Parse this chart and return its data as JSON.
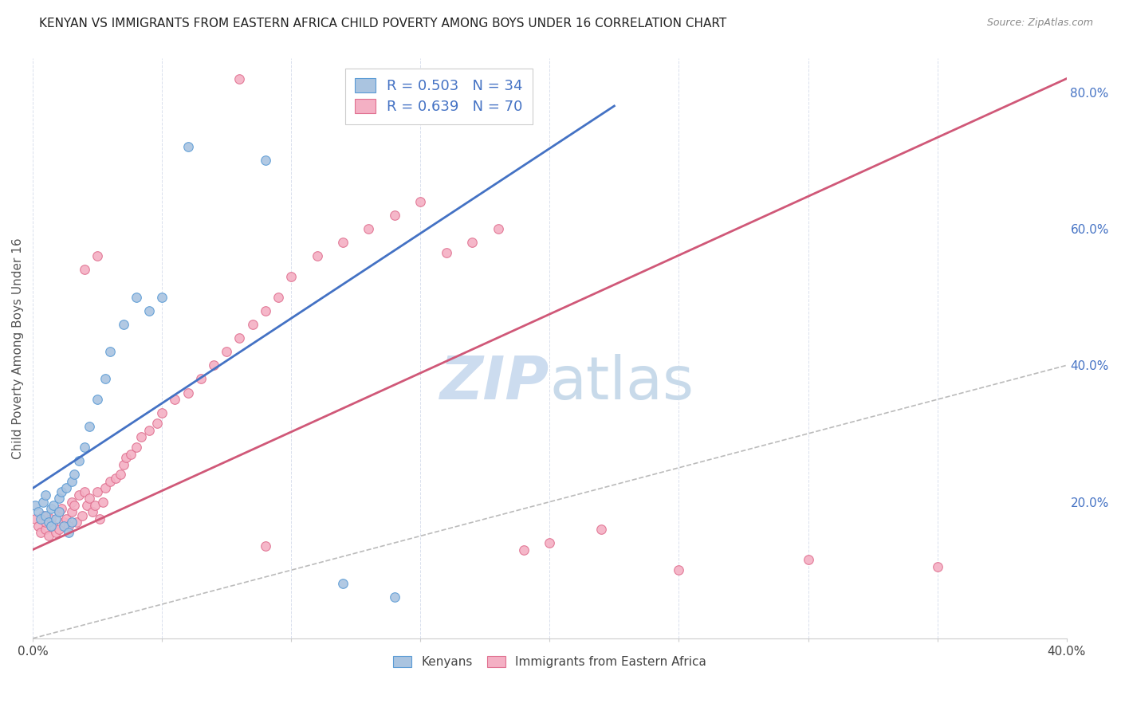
{
  "title": "KENYAN VS IMMIGRANTS FROM EASTERN AFRICA CHILD POVERTY AMONG BOYS UNDER 16 CORRELATION CHART",
  "source": "Source: ZipAtlas.com",
  "ylabel": "Child Poverty Among Boys Under 16",
  "x_min": 0.0,
  "x_max": 0.4,
  "y_min": 0.0,
  "y_max": 0.85,
  "kenyan_color": "#aac4e0",
  "kenyan_edge_color": "#5b9bd5",
  "immigrant_color": "#f4b0c4",
  "immigrant_edge_color": "#e07090",
  "kenyan_R": 0.503,
  "kenyan_N": 34,
  "immigrant_R": 0.639,
  "immigrant_N": 70,
  "kenyan_line_color": "#4472c4",
  "immigrant_line_color": "#d05878",
  "diagonal_color": "#bbbbbb",
  "watermark_zip_color": "#ccdcef",
  "watermark_atlas_color": "#c8daea",
  "kenyan_line_x0": 0.0,
  "kenyan_line_y0": 0.22,
  "kenyan_line_x1": 0.225,
  "kenyan_line_y1": 0.78,
  "immigrant_line_x0": 0.0,
  "immigrant_line_y0": 0.13,
  "immigrant_line_x1": 0.4,
  "immigrant_line_y1": 0.82,
  "kenyan_x": [
    0.001,
    0.002,
    0.003,
    0.004,
    0.005,
    0.005,
    0.006,
    0.007,
    0.007,
    0.008,
    0.009,
    0.01,
    0.01,
    0.011,
    0.012,
    0.013,
    0.014,
    0.015,
    0.015,
    0.016,
    0.018,
    0.02,
    0.022,
    0.025,
    0.028,
    0.03,
    0.035,
    0.04,
    0.045,
    0.05,
    0.06,
    0.09,
    0.12,
    0.14
  ],
  "kenyan_y": [
    0.195,
    0.185,
    0.175,
    0.2,
    0.18,
    0.21,
    0.17,
    0.19,
    0.165,
    0.195,
    0.175,
    0.205,
    0.185,
    0.215,
    0.165,
    0.22,
    0.155,
    0.23,
    0.17,
    0.24,
    0.26,
    0.28,
    0.31,
    0.35,
    0.38,
    0.42,
    0.46,
    0.5,
    0.48,
    0.5,
    0.72,
    0.7,
    0.08,
    0.06
  ],
  "immigrant_x": [
    0.001,
    0.002,
    0.003,
    0.004,
    0.005,
    0.005,
    0.006,
    0.007,
    0.008,
    0.009,
    0.01,
    0.01,
    0.011,
    0.012,
    0.013,
    0.014,
    0.015,
    0.015,
    0.016,
    0.017,
    0.018,
    0.019,
    0.02,
    0.021,
    0.022,
    0.023,
    0.024,
    0.025,
    0.026,
    0.027,
    0.028,
    0.03,
    0.032,
    0.034,
    0.035,
    0.036,
    0.038,
    0.04,
    0.042,
    0.045,
    0.048,
    0.05,
    0.055,
    0.06,
    0.065,
    0.07,
    0.075,
    0.08,
    0.085,
    0.09,
    0.095,
    0.1,
    0.11,
    0.12,
    0.13,
    0.14,
    0.15,
    0.16,
    0.17,
    0.18,
    0.19,
    0.2,
    0.22,
    0.25,
    0.3,
    0.35,
    0.08,
    0.09,
    0.02,
    0.025
  ],
  "immigrant_y": [
    0.175,
    0.165,
    0.155,
    0.18,
    0.16,
    0.17,
    0.15,
    0.175,
    0.165,
    0.155,
    0.185,
    0.16,
    0.19,
    0.17,
    0.175,
    0.165,
    0.2,
    0.185,
    0.195,
    0.17,
    0.21,
    0.18,
    0.215,
    0.195,
    0.205,
    0.185,
    0.195,
    0.215,
    0.175,
    0.2,
    0.22,
    0.23,
    0.235,
    0.24,
    0.255,
    0.265,
    0.27,
    0.28,
    0.295,
    0.305,
    0.315,
    0.33,
    0.35,
    0.36,
    0.38,
    0.4,
    0.42,
    0.44,
    0.46,
    0.48,
    0.5,
    0.53,
    0.56,
    0.58,
    0.6,
    0.62,
    0.64,
    0.565,
    0.58,
    0.6,
    0.13,
    0.14,
    0.16,
    0.1,
    0.115,
    0.105,
    0.82,
    0.135,
    0.54,
    0.56
  ]
}
